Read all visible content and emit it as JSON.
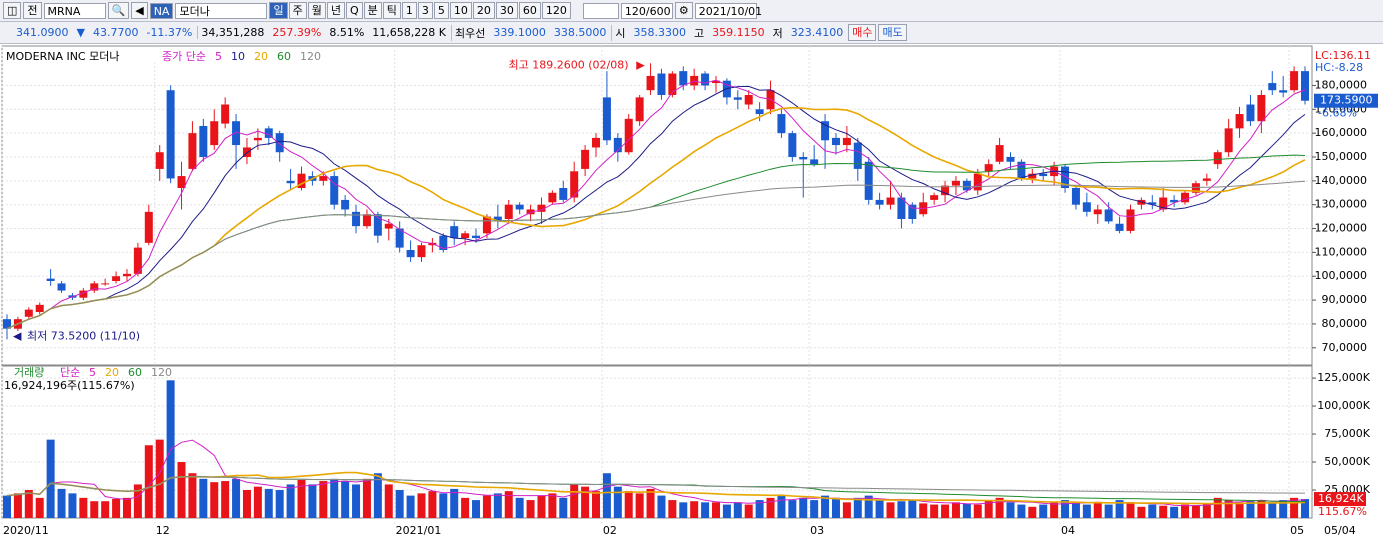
{
  "toolbar": {
    "symbol": "MRNA",
    "badge": "NA",
    "name": "모더나",
    "periods": [
      "일",
      "주",
      "월",
      "년",
      "Q",
      "분",
      "틱",
      "1",
      "3",
      "5",
      "10",
      "20",
      "30",
      "60",
      "120"
    ],
    "count": "120/600",
    "date": "2021/10/01"
  },
  "quote": {
    "items": [
      "341.0900",
      "▼",
      "43.7700",
      "-11.37%",
      "34,351,288",
      "257.39%",
      "8.51%",
      "11,658,228 K",
      "최우선",
      "339.1000",
      "338.5000",
      "시",
      "358.3300",
      "고",
      "359.1150",
      "저",
      "323.4100"
    ],
    "buy": "매수",
    "sell": "매도"
  },
  "chart_data": [
    {
      "type": "candlestick",
      "title": "MODERNA INC 모더나",
      "indicator": "종가 단순",
      "ma_periods": [
        5,
        10,
        20,
        60,
        120
      ],
      "ma_colors": [
        "#d21fc8",
        "#1c1c8a",
        "#e8a800",
        "#1f8c2e",
        "#8a8a8a"
      ],
      "up_color": "#e8141a",
      "down_color": "#1a5ccf",
      "open": [
        82,
        78,
        83,
        85,
        99,
        97,
        92,
        91,
        94,
        97,
        98,
        100,
        101,
        114,
        145,
        178,
        137,
        145,
        163,
        155,
        164,
        165,
        150,
        157,
        162,
        160,
        140,
        137,
        142,
        140,
        142,
        132,
        127,
        121,
        126,
        120,
        120,
        111,
        108,
        113,
        117,
        121,
        116,
        117,
        118,
        125,
        124,
        130,
        126,
        127,
        131,
        137,
        133,
        145,
        154,
        175,
        158,
        152,
        165,
        178,
        185,
        176,
        186,
        180,
        185,
        181,
        182,
        175,
        172,
        170,
        170,
        168,
        160,
        150,
        149,
        165,
        158,
        155,
        156,
        148,
        132,
        130,
        133,
        130,
        126,
        132,
        134,
        138,
        140,
        136,
        144,
        148,
        150,
        148,
        141,
        143,
        142,
        146,
        137,
        131,
        126,
        128,
        122,
        119,
        130,
        131,
        128,
        132,
        131,
        135,
        140,
        147,
        152,
        162,
        172,
        165,
        181,
        178,
        178,
        186
      ],
      "high": [
        84,
        83,
        87,
        89,
        103,
        98,
        93,
        95,
        98,
        99,
        102,
        103,
        114,
        130,
        155,
        180,
        148,
        165,
        166,
        170,
        175,
        168,
        158,
        162,
        163,
        161,
        145,
        146,
        144,
        144,
        144,
        134,
        130,
        128,
        127,
        124,
        123,
        115,
        114,
        116,
        118,
        123,
        119,
        120,
        126,
        130,
        132,
        131,
        130,
        133,
        136,
        140,
        148,
        155,
        160,
        186,
        160,
        168,
        176,
        189.26,
        187,
        186,
        188,
        187,
        186,
        184,
        183,
        178,
        178,
        173,
        182,
        170,
        161,
        152,
        155,
        168,
        160,
        163,
        158,
        150,
        135,
        140,
        135,
        131,
        135,
        135,
        140,
        142,
        141,
        145,
        149,
        158,
        152,
        149,
        145,
        145,
        148,
        147,
        138,
        135,
        130,
        131,
        125,
        130,
        133,
        134,
        137,
        134,
        136,
        140,
        143,
        153,
        166,
        171,
        176,
        178,
        186,
        184,
        188,
        188
      ],
      "low": [
        73.52,
        77,
        82,
        84,
        96,
        93,
        90,
        90,
        93,
        96,
        97,
        98,
        100,
        113,
        140,
        139,
        128,
        144,
        148,
        153,
        162,
        145,
        147,
        153,
        155,
        148,
        136,
        136,
        138,
        138,
        128,
        125,
        118,
        120,
        114,
        115,
        110,
        106,
        106,
        110,
        110,
        113,
        113,
        114,
        116,
        120,
        122,
        126,
        123,
        122,
        130,
        131,
        131,
        142,
        150,
        155,
        148,
        151,
        163,
        176,
        174,
        175,
        178,
        178,
        178,
        177,
        172,
        170,
        170,
        165,
        168,
        158,
        148,
        133,
        146,
        145,
        151,
        152,
        140,
        130,
        128,
        128,
        120,
        122,
        125,
        130,
        131,
        134,
        135,
        134,
        142,
        147,
        145,
        140,
        139,
        140,
        138,
        135,
        128,
        125,
        122,
        122,
        118,
        118,
        128,
        128,
        127,
        129,
        130,
        134,
        138,
        145,
        150,
        158,
        163,
        160,
        176,
        175,
        177,
        172
      ],
      "close": [
        78,
        82,
        86,
        88,
        98,
        94,
        91,
        94,
        97,
        97,
        100,
        101,
        112,
        127,
        152,
        141,
        142,
        160,
        150,
        165,
        172,
        155,
        154,
        158,
        158,
        152,
        139,
        143,
        140,
        142,
        130,
        128,
        121,
        126,
        117,
        122,
        112,
        108,
        113,
        114,
        111,
        116,
        118,
        116,
        125,
        123,
        130,
        128,
        128,
        130,
        135,
        132,
        144,
        153,
        158,
        157,
        152,
        166,
        175,
        184,
        176,
        185,
        180,
        184,
        180,
        182,
        175,
        174,
        176,
        168,
        178,
        160,
        150,
        149,
        147,
        157,
        155,
        158,
        145,
        132,
        130,
        133,
        124,
        124,
        131,
        134,
        138,
        140,
        136,
        143,
        147,
        155,
        148,
        141,
        143,
        142,
        146,
        137,
        130,
        127,
        128,
        123,
        119,
        128,
        132,
        130,
        133,
        131,
        135,
        139,
        141,
        152,
        162,
        168,
        165,
        176,
        178,
        177,
        186,
        173.59
      ],
      "ylim": [
        63.2,
        195.7
      ],
      "yticks": [
        {
          "value": 70,
          "label": "70,0000"
        },
        {
          "value": 80,
          "label": "80,0000"
        },
        {
          "value": 90,
          "label": "90,0000"
        },
        {
          "value": 100,
          "label": "100,0000"
        },
        {
          "value": 110,
          "label": "110,0000"
        },
        {
          "value": 120,
          "label": "120,0000"
        },
        {
          "value": 130,
          "label": "130,0000"
        },
        {
          "value": 140,
          "label": "140,0000"
        },
        {
          "value": 150,
          "label": "150,0000"
        },
        {
          "value": 160,
          "label": "160,0000"
        },
        {
          "value": 170,
          "label": "170,0000"
        },
        {
          "value": 180,
          "label": "180,0000"
        }
      ],
      "high_label": "최고 189.2600 (02/08)",
      "low_label": "최저 73.5200 (11/10)",
      "lc": "LC:136.11",
      "hc": "HC:-8.28",
      "last_price": "173.5900",
      "last_change": "-6.68%"
    },
    {
      "type": "bar",
      "title": "거래량",
      "indicator": "단순",
      "ma_periods": [
        5,
        20,
        60,
        120
      ],
      "ma_colors": [
        "#d21fc8",
        "#e8a800",
        "#1f8c2e",
        "#8a8a8a"
      ],
      "caption": "16,924,196주(115.67%)",
      "categories": [
        "2020/11",
        null,
        null,
        null,
        null,
        null,
        null,
        null,
        null,
        null,
        null,
        null,
        null,
        null,
        "12",
        null,
        null,
        null,
        null,
        null,
        null,
        null,
        null,
        null,
        null,
        null,
        null,
        null,
        null,
        null,
        null,
        null,
        null,
        null,
        null,
        null,
        "2021/01",
        null,
        null,
        null,
        null,
        null,
        null,
        null,
        null,
        null,
        null,
        null,
        null,
        null,
        null,
        null,
        null,
        null,
        null,
        "02",
        null,
        null,
        null,
        null,
        null,
        null,
        null,
        null,
        null,
        null,
        null,
        null,
        null,
        null,
        null,
        null,
        null,
        null,
        "03",
        null,
        null,
        null,
        null,
        null,
        null,
        null,
        null,
        null,
        null,
        null,
        null,
        null,
        null,
        null,
        null,
        null,
        null,
        null,
        null,
        null,
        null,
        "04",
        null,
        null,
        null,
        null,
        null,
        null,
        null,
        null,
        null,
        null,
        null,
        null,
        null,
        null,
        null,
        null,
        null,
        null,
        null,
        null,
        "05",
        null
      ],
      "values": [
        20000,
        22000,
        25000,
        18000,
        70000,
        26000,
        22000,
        18000,
        15000,
        15000,
        17000,
        18000,
        30000,
        65000,
        70000,
        123000,
        50000,
        40000,
        35000,
        32000,
        33000,
        35000,
        25000,
        28000,
        26000,
        25000,
        30000,
        34000,
        30000,
        33000,
        35000,
        33000,
        30000,
        35000,
        40000,
        30000,
        25000,
        20000,
        22000,
        24000,
        22000,
        26000,
        18000,
        16000,
        20000,
        22000,
        24000,
        18000,
        16000,
        20000,
        22000,
        18000,
        30000,
        28000,
        24000,
        40000,
        28000,
        24000,
        22000,
        26000,
        20000,
        16000,
        14000,
        15000,
        14000,
        14000,
        12000,
        14000,
        12000,
        16000,
        18000,
        20000,
        16000,
        18000,
        16000,
        20000,
        18000,
        14000,
        18000,
        20000,
        16000,
        14000,
        15000,
        16000,
        13000,
        12000,
        12000,
        14000,
        13000,
        12000,
        16000,
        18000,
        14000,
        12000,
        10000,
        12000,
        14000,
        16000,
        14000,
        12000,
        14000,
        12000,
        16000,
        14000,
        10000,
        12000,
        11000,
        10000,
        12000,
        11000,
        13000,
        18000,
        16000,
        14000,
        15000,
        16000,
        14000,
        16000,
        18000,
        16924
      ],
      "ylim": [
        0,
        134000
      ],
      "yticks": [
        {
          "value": 25000,
          "label": "25,000K"
        },
        {
          "value": 50000,
          "label": "50,000K"
        },
        {
          "value": 75000,
          "label": "75,000K"
        },
        {
          "value": 100000,
          "label": "100,000K"
        },
        {
          "value": 125000,
          "label": "125,000K"
        }
      ],
      "last_label": "16,924K",
      "last_ratio": "115.67%",
      "x_end_label": "05/04"
    }
  ]
}
